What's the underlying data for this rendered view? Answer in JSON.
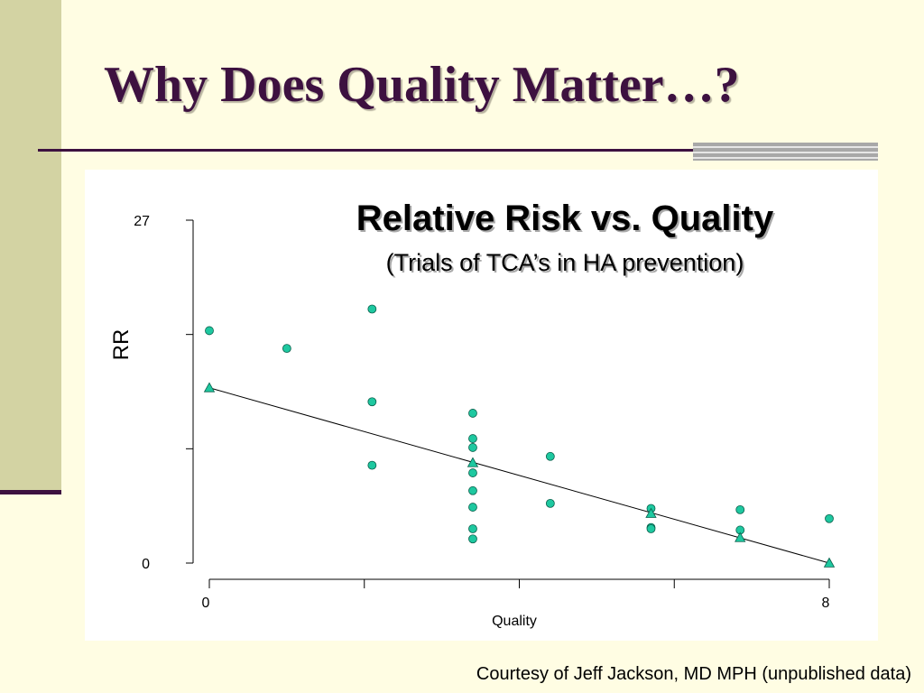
{
  "slide": {
    "title": "Why Does Quality Matter…?",
    "courtesy": "Courtesy of Jeff Jackson, MD MPH (unpublished data)",
    "colors": {
      "title": "#3d1140",
      "background": "#fffde3",
      "side_bar": "#d3d3a3",
      "marker": "#1ec8a0"
    }
  },
  "chart_data": {
    "type": "scatter",
    "title": "Relative Risk vs. Quality",
    "subtitle": "(Trials of TCA’s in HA prevention)",
    "xlabel": "Quality",
    "ylabel": "RR",
    "xlim": [
      0,
      8
    ],
    "ylim": [
      0,
      27
    ],
    "x_tick_labels": [
      "0",
      "8"
    ],
    "y_tick_labels": [
      "0",
      "27"
    ],
    "x_ticks": [
      0,
      2,
      4,
      6,
      8
    ],
    "y_ticks": [
      0,
      9,
      18,
      27
    ],
    "grid": false,
    "series": [
      {
        "marker": "circle",
        "points": [
          {
            "x": 0,
            "y": 18.3
          },
          {
            "x": 1,
            "y": 16.9
          },
          {
            "x": 2.1,
            "y": 20.0
          },
          {
            "x": 2.1,
            "y": 12.7
          },
          {
            "x": 2.1,
            "y": 7.7
          },
          {
            "x": 3.4,
            "y": 11.8
          },
          {
            "x": 3.4,
            "y": 9.8
          },
          {
            "x": 3.4,
            "y": 9.1
          },
          {
            "x": 3.4,
            "y": 7.1
          },
          {
            "x": 3.4,
            "y": 5.7
          },
          {
            "x": 3.4,
            "y": 4.4
          },
          {
            "x": 3.4,
            "y": 2.7
          },
          {
            "x": 3.4,
            "y": 1.9
          },
          {
            "x": 4.4,
            "y": 8.4
          },
          {
            "x": 4.4,
            "y": 4.7
          },
          {
            "x": 5.7,
            "y": 4.3
          },
          {
            "x": 5.7,
            "y": 2.8
          },
          {
            "x": 5.7,
            "y": 2.7
          },
          {
            "x": 6.85,
            "y": 4.2
          },
          {
            "x": 6.85,
            "y": 2.6
          },
          {
            "x": 8,
            "y": 3.5
          }
        ]
      },
      {
        "marker": "triangle",
        "points": [
          {
            "x": 0,
            "y": 13.8
          },
          {
            "x": 3.4,
            "y": 7.9
          },
          {
            "x": 5.7,
            "y": 3.9
          },
          {
            "x": 6.85,
            "y": 2.0
          },
          {
            "x": 8,
            "y": 0
          }
        ]
      }
    ],
    "trendline": {
      "x": [
        0,
        8
      ],
      "y": [
        13.8,
        0
      ]
    }
  }
}
